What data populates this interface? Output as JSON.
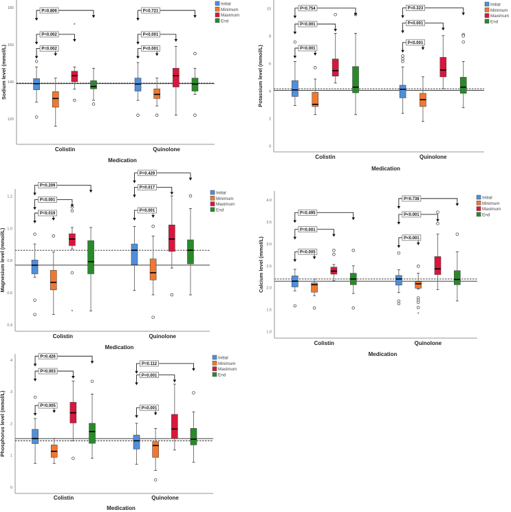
{
  "legend": {
    "labels": [
      "Initial",
      "Minimum",
      "Maximum",
      "End"
    ],
    "colors": [
      "#4f8fdc",
      "#f2782f",
      "#d9163c",
      "#2a8a2a"
    ]
  },
  "chart_data": [
    {
      "type": "box",
      "ylabel": "Sodium level (mmol/L)",
      "xlabel": "Medication",
      "categories": [
        "Colistin",
        "Quinolone"
      ],
      "series_names": [
        "Initial",
        "Minimum",
        "Maximum",
        "End"
      ],
      "ylim": [
        106.3,
        184.1
      ],
      "yticks": [
        {
          "v": 120,
          "label": "120"
        },
        {
          "v": 140,
          "label": "140"
        },
        {
          "v": 160,
          "label": "160"
        },
        {
          "v": 180,
          "label": "180"
        }
      ],
      "ref_lines": {
        "solid": 139,
        "dashed": 139.3
      },
      "boxes": [
        [
          {
            "min": 129,
            "q1": 135.7,
            "median": 139,
            "q3": 141.7,
            "max": 148,
            "outliers": [
              151,
              121
            ],
            "extremes": []
          },
          {
            "min": 116,
            "q1": 126.3,
            "median": 131,
            "q3": 134.7,
            "max": 142,
            "outliers": [],
            "extremes": []
          },
          {
            "min": 136,
            "q1": 140,
            "median": 143.3,
            "q3": 145.7,
            "max": 148,
            "outliers": [
              130
            ],
            "extremes": [
              171
            ]
          },
          {
            "min": 130,
            "q1": 136.2,
            "median": 137.5,
            "q3": 140.6,
            "max": 147.3,
            "outliers": [
              128
            ],
            "extremes": []
          }
        ],
        [
          {
            "min": 130,
            "q1": 135,
            "median": 138.8,
            "q3": 142,
            "max": 150.4,
            "outliers": [
              122
            ],
            "extremes": []
          },
          {
            "min": 127,
            "q1": 131,
            "median": 133.2,
            "q3": 136.2,
            "max": 142,
            "outliers": [
              122
            ],
            "extremes": []
          },
          {
            "min": 122,
            "q1": 137.2,
            "median": 143.3,
            "q3": 147.3,
            "max": 159.1,
            "outliers": [],
            "extremes": []
          },
          {
            "min": 133.2,
            "q1": 135,
            "median": 138.8,
            "q3": 142,
            "max": 147.3,
            "outliers": [
              155.2,
              122
            ],
            "extremes": []
          }
        ]
      ],
      "comparisons": [
        {
          "category": 0,
          "from": 0,
          "to": 3,
          "label": "P=0.806",
          "y": 178.5
        },
        {
          "category": 0,
          "from": 0,
          "to": 2,
          "label": "P=0.002",
          "y": 165.6
        },
        {
          "category": 0,
          "from": 0,
          "to": 1,
          "label": "P=0.002",
          "y": 158
        },
        {
          "category": 1,
          "from": 0,
          "to": 3,
          "label": "P=0.721",
          "y": 178.5
        },
        {
          "category": 1,
          "from": 0,
          "to": 2,
          "label": "P<0.001",
          "y": 165.6
        },
        {
          "category": 1,
          "from": 0,
          "to": 1,
          "label": "P<0.001",
          "y": 158
        }
      ]
    },
    {
      "type": "box",
      "ylabel": "Potassium level (mmol/L)",
      "xlabel": "Medication",
      "categories": [
        "Colistin",
        "Quinolone"
      ],
      "series_names": [
        "Initial",
        "Minimum",
        "Maximum",
        "End"
      ],
      "ylim": [
        -0.43,
        10.62
      ],
      "yticks": [
        {
          "v": 0,
          "label": "0"
        },
        {
          "v": 2,
          "label": "2"
        },
        {
          "v": 4,
          "label": "4"
        },
        {
          "v": 6,
          "label": "6"
        },
        {
          "v": 8,
          "label": "8"
        },
        {
          "v": 10,
          "label": "10"
        }
      ],
      "ref_lines": {
        "solid": 4.05,
        "dashed": 4.16
      },
      "boxes": [
        [
          {
            "min": 2.95,
            "q1": 3.6,
            "median": 4.08,
            "q3": 4.75,
            "max": 6.15,
            "outliers": [
              7.56
            ],
            "extremes": []
          },
          {
            "min": 2.28,
            "q1": 2.87,
            "median": 3.03,
            "q3": 3.9,
            "max": 4.87,
            "outliers": [
              5.7
            ],
            "extremes": []
          },
          {
            "min": 4.58,
            "q1": 5.08,
            "median": 5.48,
            "q3": 6.33,
            "max": 8.2,
            "outliers": [
              9.56
            ],
            "extremes": []
          },
          {
            "min": 2.28,
            "q1": 3.87,
            "median": 4.28,
            "q3": 5.78,
            "max": 8.2,
            "outliers": [
              9.56
            ],
            "extremes": []
          }
        ],
        [
          {
            "min": 2.37,
            "q1": 3.5,
            "median": 4.12,
            "q3": 4.42,
            "max": 5.75,
            "outliers": [
              6.15,
              6.35,
              6.55
            ],
            "extremes": []
          },
          {
            "min": 1.78,
            "q1": 2.87,
            "median": 3.37,
            "q3": 3.83,
            "max": 5.03,
            "outliers": [],
            "extremes": []
          },
          {
            "min": 4.17,
            "q1": 5.03,
            "median": 5.53,
            "q3": 6.45,
            "max": 8.03,
            "outliers": [],
            "extremes": []
          },
          {
            "min": 2.78,
            "q1": 3.83,
            "median": 4.28,
            "q3": 5.0,
            "max": 6.15,
            "outliers": [
              8.1,
              8.0,
              7.56
            ],
            "extremes": []
          }
        ]
      ],
      "comparisons": [
        {
          "category": 0,
          "from": 0,
          "to": 3,
          "label": "P=0.754",
          "y": 10.03
        },
        {
          "category": 0,
          "from": 0,
          "to": 2,
          "label": "P=0.001",
          "y": 8.87
        },
        {
          "category": 0,
          "from": 0,
          "to": 1,
          "label": "P=0.001",
          "y": 7.12
        },
        {
          "category": 1,
          "from": 0,
          "to": 3,
          "label": "P=0.323",
          "y": 10.05
        },
        {
          "category": 1,
          "from": 0,
          "to": 2,
          "label": "P<0.001",
          "y": 8.95
        },
        {
          "category": 1,
          "from": 0,
          "to": 1,
          "label": "P<0.001",
          "y": 7.53
        }
      ]
    },
    {
      "type": "box",
      "ylabel": "Magnesium level (mmol/L)",
      "xlabel": "Medication",
      "categories": [
        "Colistin",
        "Quinolone"
      ],
      "series_names": [
        "Initial",
        "Minimum",
        "Maximum",
        "End"
      ],
      "ylim": [
        0.359,
        1.246
      ],
      "yticks": [
        {
          "v": 0.4,
          "label": "0.4"
        },
        {
          "v": 0.6,
          "label": "0.6"
        },
        {
          "v": 0.8,
          "label": "0.8"
        },
        {
          "v": 1.0,
          "label": "1.0"
        },
        {
          "v": 1.2,
          "label": "1.2"
        }
      ],
      "ref_lines": {
        "solid": 0.771,
        "dashed": 0.864
      },
      "boxes": [
        [
          {
            "min": 0.696,
            "q1": 0.717,
            "median": 0.771,
            "q3": 0.803,
            "max": 0.903,
            "outliers": [
              0.964,
              0.553,
              0.463
            ],
            "extremes": []
          },
          {
            "min": 0.464,
            "q1": 0.617,
            "median": 0.664,
            "q3": 0.739,
            "max": 0.853,
            "outliers": [
              0.953
            ],
            "extremes": []
          },
          {
            "min": 0.871,
            "q1": 0.893,
            "median": 0.934,
            "q3": 0.967,
            "max": 1.006,
            "outliers": [
              1.134,
              1.11,
              0.724
            ],
            "extremes": [
              0.486
            ]
          },
          {
            "min": 0.486,
            "q1": 0.717,
            "median": 0.793,
            "q3": 0.924,
            "max": 1.006,
            "outliers": [],
            "extremes": []
          }
        ],
        [
          {
            "min": 0.613,
            "q1": 0.774,
            "median": 0.864,
            "q3": 0.903,
            "max": 1.013,
            "outliers": [],
            "extremes": []
          },
          {
            "min": 0.586,
            "q1": 0.679,
            "median": 0.724,
            "q3": 0.81,
            "max": 0.953,
            "outliers": [
              1.013,
              0.446
            ],
            "extremes": []
          },
          {
            "min": 0.753,
            "q1": 0.857,
            "median": 0.934,
            "q3": 1.022,
            "max": 1.203,
            "outliers": [
              0.586
            ],
            "extremes": []
          },
          {
            "min": 0.586,
            "q1": 0.779,
            "median": 0.864,
            "q3": 0.929,
            "max": 1.124,
            "outliers": [
              1.203
            ],
            "extremes": []
          }
        ]
      ],
      "comparisons": [
        {
          "category": 0,
          "from": 0,
          "to": 3,
          "label": "P=0.209",
          "y": 1.27
        },
        {
          "category": 0,
          "from": 0,
          "to": 2,
          "label": "P=0.001",
          "y": 1.18
        },
        {
          "category": 0,
          "from": 0,
          "to": 1,
          "label": "P=0.019",
          "y": 1.096
        },
        {
          "category": 1,
          "from": 0,
          "to": 3,
          "label": "P=0.429",
          "y": 1.346
        },
        {
          "category": 1,
          "from": 0,
          "to": 2,
          "label": "P=0.017",
          "y": 1.257
        },
        {
          "category": 1,
          "from": 0,
          "to": 1,
          "label": "P=0.001",
          "y": 1.113
        }
      ]
    },
    {
      "type": "box",
      "ylabel": "Calcium level (mmol/L)",
      "xlabel": "Medication",
      "categories": [
        "Colistin",
        "Quinolone"
      ],
      "series_names": [
        "Initial",
        "Minimum",
        "Maximum",
        "End"
      ],
      "ylim": [
        0.855,
        4.2
      ],
      "yticks": [
        {
          "v": 1.0,
          "label": "1.0"
        },
        {
          "v": 1.5,
          "label": "1.5"
        },
        {
          "v": 2.0,
          "label": "2.0"
        },
        {
          "v": 2.5,
          "label": "2.5"
        },
        {
          "v": 3.0,
          "label": "3.0"
        },
        {
          "v": 3.5,
          "label": "3.5"
        },
        {
          "v": 4.0,
          "label": "4.0"
        }
      ],
      "ref_lines": {
        "solid": 2.15,
        "dashed": 2.2
      },
      "boxes": [
        [
          {
            "min": 1.93,
            "q1": 2.02,
            "median": 2.15,
            "q3": 2.27,
            "max": 2.42,
            "outliers": [
              1.59
            ],
            "extremes": []
          },
          {
            "min": 1.82,
            "q1": 1.9,
            "median": 2.07,
            "q3": 2.11,
            "max": 2.2,
            "outliers": [
              1.54
            ],
            "extremes": []
          },
          {
            "min": 2.16,
            "q1": 2.31,
            "median": 2.38,
            "q3": 2.47,
            "max": 2.53,
            "outliers": [
              2.85,
              2.76
            ],
            "extremes": []
          },
          {
            "min": 1.87,
            "q1": 2.07,
            "median": 2.2,
            "q3": 2.33,
            "max": 2.5,
            "outliers": [
              2.85,
              1.54
            ],
            "extremes": []
          }
        ],
        [
          {
            "min": 1.89,
            "q1": 2.06,
            "median": 2.2,
            "q3": 2.28,
            "max": 2.41,
            "outliers": [
              2.79,
              1.7,
              1.64
            ],
            "extremes": []
          },
          {
            "min": 1.97,
            "q1": 1.99,
            "median": 2.09,
            "q3": 2.14,
            "max": 2.33,
            "outliers": [
              2.49,
              1.77,
              1.72,
              1.67,
              1.55
            ],
            "extremes": [
              1.42
            ]
          },
          {
            "min": 1.96,
            "q1": 2.3,
            "median": 2.43,
            "q3": 2.71,
            "max": 3.22,
            "outliers": [
              3.72,
              3.46
            ],
            "extremes": []
          },
          {
            "min": 1.7,
            "q1": 2.07,
            "median": 2.19,
            "q3": 2.39,
            "max": 2.82,
            "outliers": [
              3.22
            ],
            "extremes": []
          }
        ]
      ],
      "comparisons": [
        {
          "category": 0,
          "from": 0,
          "to": 3,
          "label": "P=0.495",
          "y": 3.71
        },
        {
          "category": 0,
          "from": 0,
          "to": 2,
          "label": "P=0.001",
          "y": 3.33
        },
        {
          "category": 0,
          "from": 0,
          "to": 1,
          "label": "P=0.005",
          "y": 2.82
        },
        {
          "category": 1,
          "from": 0,
          "to": 3,
          "label": "P=0.738",
          "y": 4.03
        },
        {
          "category": 1,
          "from": 0,
          "to": 2,
          "label": "P<0.001",
          "y": 3.67
        },
        {
          "category": 1,
          "from": 0,
          "to": 1,
          "label": "P<0.001",
          "y": 3.14
        }
      ]
    },
    {
      "type": "box",
      "ylabel": "Phosphorus level (mmol/L)",
      "xlabel": "Medication",
      "categories": [
        "Colistin",
        "Quinolone"
      ],
      "series_names": [
        "Initial",
        "Minimum",
        "Maximum",
        "End"
      ],
      "ylim": [
        -0.195,
        4.19
      ],
      "yticks": [
        {
          "v": 0,
          "label": "0"
        },
        {
          "v": 1,
          "label": "1"
        },
        {
          "v": 2,
          "label": "2"
        },
        {
          "v": 3,
          "label": "3"
        },
        {
          "v": 4,
          "label": "4"
        }
      ],
      "ref_lines": {
        "solid": 1.53,
        "dashed": 1.46
      },
      "boxes": [
        [
          {
            "min": 0.75,
            "q1": 1.37,
            "median": 1.53,
            "q3": 1.82,
            "max": 2.16,
            "outliers": [
              2.83
            ],
            "extremes": []
          },
          {
            "min": 0.75,
            "q1": 0.94,
            "median": 1.13,
            "q3": 1.33,
            "max": 1.53,
            "outliers": [],
            "extremes": []
          },
          {
            "min": 1.46,
            "q1": 2.02,
            "median": 2.34,
            "q3": 2.67,
            "max": 3.34,
            "outliers": [
              0.91
            ],
            "extremes": []
          },
          {
            "min": 0.91,
            "q1": 1.38,
            "median": 1.75,
            "q3": 2.01,
            "max": 2.93,
            "outliers": [
              3.33
            ],
            "extremes": []
          }
        ],
        [
          {
            "min": 0.72,
            "q1": 1.2,
            "median": 1.46,
            "q3": 1.64,
            "max": 2.01,
            "outliers": [],
            "extremes": []
          },
          {
            "min": 0.53,
            "q1": 0.94,
            "median": 1.31,
            "q3": 1.43,
            "max": 1.85,
            "outliers": [
              0.23
            ],
            "extremes": []
          },
          {
            "min": 1.17,
            "q1": 1.53,
            "median": 1.83,
            "q3": 2.29,
            "max": 3.24,
            "outliers": [],
            "extremes": []
          },
          {
            "min": 0.79,
            "q1": 1.33,
            "median": 1.51,
            "q3": 1.85,
            "max": 2.37,
            "outliers": [
              2.97
            ],
            "extremes": []
          }
        ]
      ],
      "comparisons": [
        {
          "category": 0,
          "from": 0,
          "to": 3,
          "label": "P=0.426",
          "y": 4.12
        },
        {
          "category": 0,
          "from": 0,
          "to": 2,
          "label": "P=0.003",
          "y": 3.65
        },
        {
          "category": 0,
          "from": 0,
          "to": 1,
          "label": "P=0.005",
          "y": 2.57
        },
        {
          "category": 1,
          "from": 0,
          "to": 3,
          "label": "P=0.112",
          "y": 3.89
        },
        {
          "category": 1,
          "from": 0,
          "to": 2,
          "label": "P=0.001",
          "y": 3.53
        },
        {
          "category": 1,
          "from": 0,
          "to": 1,
          "label": "P=0.001",
          "y": 2.5
        }
      ]
    }
  ]
}
